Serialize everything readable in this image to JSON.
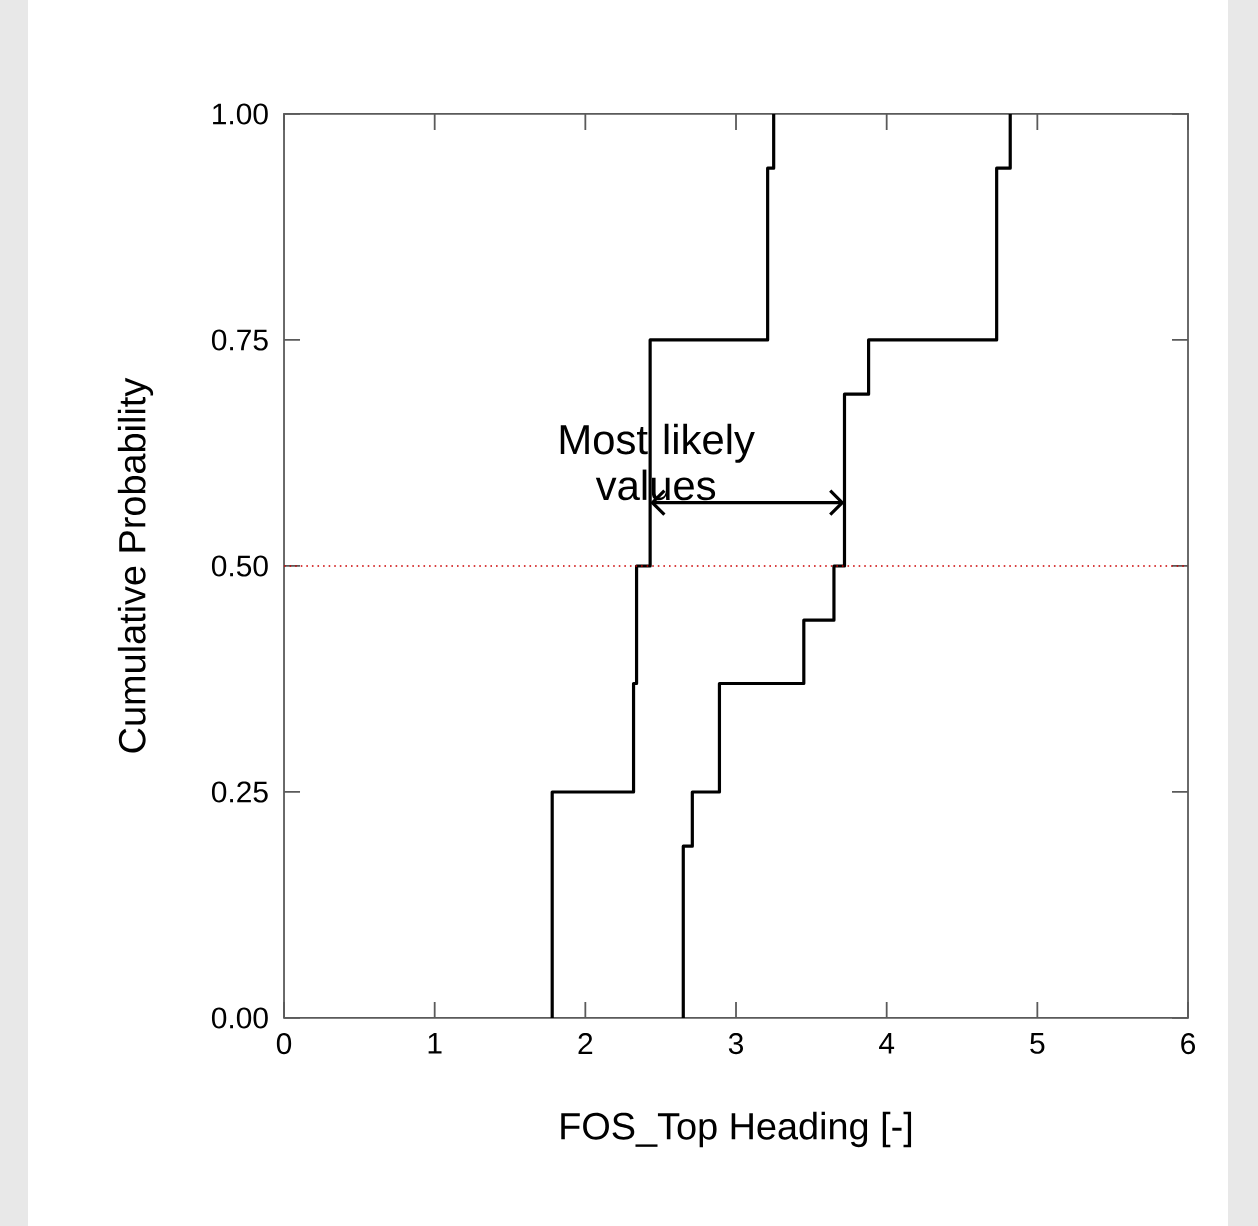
{
  "chart_data": {
    "type": "step",
    "xlabel": "FOS_Top Heading [-]",
    "ylabel": "Cumulative Probability",
    "series": [
      {
        "color": "#000000",
        "x": [
          1.78,
          1.78,
          2.32,
          2.34,
          2.43,
          3.21,
          3.25
        ],
        "values": [
          0,
          0.25,
          0.37,
          0.5,
          0.75,
          0.94,
          1.0
        ]
      },
      {
        "color": "#000000",
        "x": [
          2.65,
          2.65,
          2.71,
          2.89,
          3.45,
          3.65,
          3.72,
          3.88,
          4.73,
          4.82
        ],
        "values": [
          0,
          0.19,
          0.25,
          0.37,
          0.44,
          0.5,
          0.69,
          0.75,
          0.94,
          1.0
        ]
      }
    ],
    "xlim": [
      0,
      6
    ],
    "xticks": [
      0,
      1,
      2,
      3,
      4,
      5,
      6
    ],
    "ylim": [
      0,
      1
    ],
    "yticks": [
      {
        "value": 0,
        "label": "0.00"
      },
      {
        "value": 0.25,
        "label": "0.25"
      },
      {
        "value": 0.5,
        "label": "0.50"
      },
      {
        "value": 0.75,
        "label": "0.75"
      },
      {
        "value": 1,
        "label": "1.00"
      }
    ],
    "ref_lines": [
      {
        "axis": "y",
        "value": 0.5,
        "color": "#cc0000",
        "line_style": "dotted"
      }
    ],
    "annotations": [
      {
        "text": "Most likely values",
        "x": 2.47,
        "y": 0.57
      }
    ],
    "grid": false,
    "marker": "none",
    "line_style": "solid"
  }
}
